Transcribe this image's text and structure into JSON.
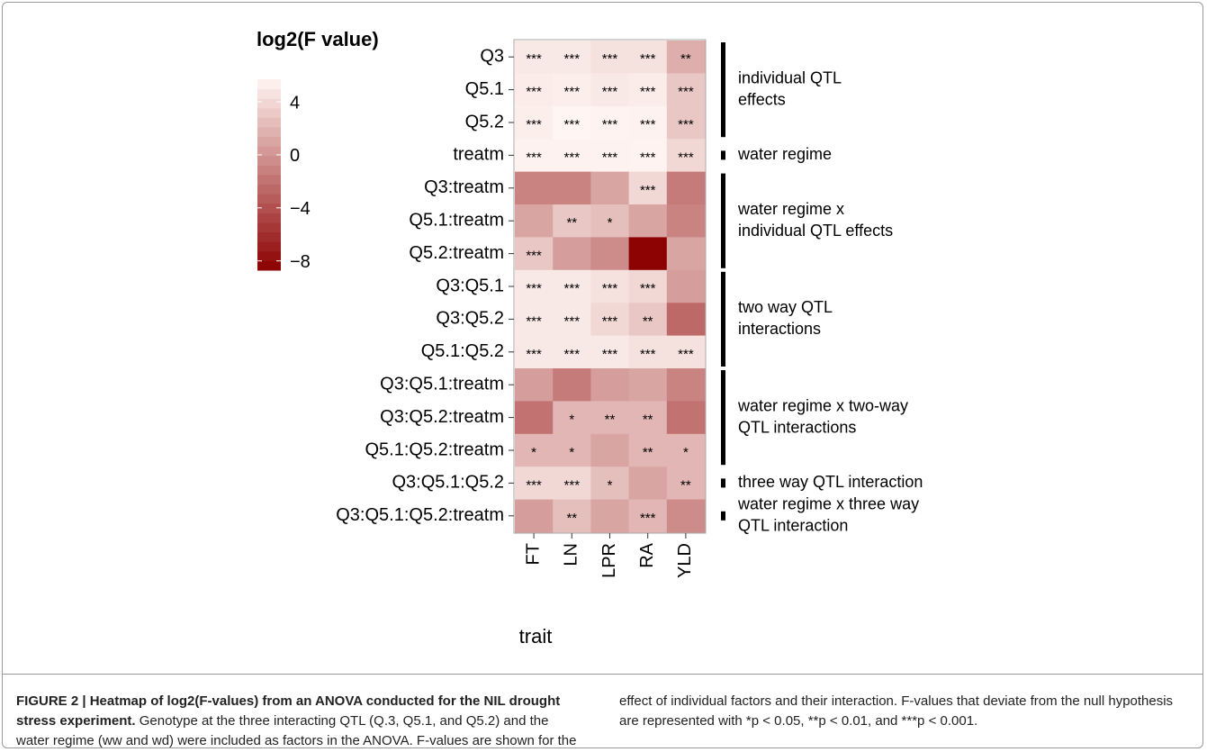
{
  "chart_data": {
    "type": "heatmap",
    "legend_title": "log2(F value)",
    "x_label": "trait",
    "columns": [
      "FT",
      "LN",
      "LPR",
      "RA",
      "YLD"
    ],
    "rows": [
      "Q3",
      "Q5.1",
      "Q5.2",
      "treatm",
      "Q3:treatm",
      "Q5.1:treatm",
      "Q5.2:treatm",
      "Q3:Q5.1",
      "Q3:Q5.2",
      "Q5.1:Q5.2",
      "Q3:Q5.1:treatm",
      "Q3:Q5.2:treatm",
      "Q5.1:Q5.2:treatm",
      "Q3:Q5.1:Q5.2",
      "Q3:Q5.1:Q5.2:treatm"
    ],
    "values": [
      [
        5,
        5,
        4.5,
        4.5,
        1.5
      ],
      [
        5.2,
        5.3,
        5,
        5.2,
        3
      ],
      [
        5.3,
        5.7,
        5.6,
        5.5,
        3
      ],
      [
        5.5,
        5.5,
        5.5,
        5.6,
        4
      ],
      [
        -1,
        -1,
        1,
        4,
        -1.5
      ],
      [
        1,
        3,
        2.5,
        1,
        -1
      ],
      [
        3,
        0.5,
        -0.5,
        -8.5,
        1
      ],
      [
        5,
        5,
        4.5,
        4,
        0.5
      ],
      [
        5,
        5,
        4,
        3,
        -2.5
      ],
      [
        5,
        5,
        5,
        4.5,
        4.5
      ],
      [
        0.5,
        -1.5,
        0.5,
        1,
        -1
      ],
      [
        -2,
        2,
        2,
        2,
        -2
      ],
      [
        2,
        2,
        1,
        2,
        2
      ],
      [
        4,
        4,
        2.5,
        1,
        2
      ],
      [
        0.5,
        2.5,
        1,
        2,
        -0.5
      ]
    ],
    "labels": [
      [
        "***",
        "***",
        "***",
        "***",
        "**"
      ],
      [
        "***",
        "***",
        "***",
        "***",
        "***"
      ],
      [
        "***",
        "***",
        "***",
        "***",
        "***"
      ],
      [
        "***",
        "***",
        "***",
        "***",
        "***"
      ],
      [
        null,
        null,
        null,
        "***",
        null
      ],
      [
        null,
        "**",
        "*",
        null,
        null
      ],
      [
        "***",
        null,
        null,
        null,
        null
      ],
      [
        "***",
        "***",
        "***",
        "***",
        null
      ],
      [
        "***",
        "***",
        "***",
        "**",
        null
      ],
      [
        "***",
        "***",
        "***",
        "***",
        "***"
      ],
      [
        null,
        null,
        null,
        null,
        null
      ],
      [
        null,
        "*",
        "**",
        "**",
        null
      ],
      [
        "*",
        "*",
        null,
        "**",
        "*"
      ],
      [
        "***",
        "***",
        "*",
        null,
        "**"
      ],
      [
        null,
        "**",
        null,
        "***",
        null
      ]
    ],
    "colorscale": {
      "low": "#8b0000",
      "high": "#fff5f2"
    },
    "clim": [
      -8.7,
      5.7
    ],
    "cticks": [
      4,
      0,
      {
        "value": -4,
        "label": "−4"
      },
      {
        "value": -8,
        "label": "−8"
      }
    ],
    "groups": [
      {
        "rows": [
          0,
          2
        ],
        "lines": [
          "individual QTL",
          "effects"
        ]
      },
      {
        "rows": [
          3,
          3
        ],
        "lines": [
          "water regime"
        ]
      },
      {
        "rows": [
          4,
          6
        ],
        "lines": [
          "water regime x",
          "individual QTL effects"
        ]
      },
      {
        "rows": [
          7,
          9
        ],
        "lines": [
          "two way QTL",
          "interactions"
        ]
      },
      {
        "rows": [
          10,
          12
        ],
        "lines": [
          "water regime x two-way",
          "QTL interactions"
        ]
      },
      {
        "rows": [
          13,
          13
        ],
        "lines": [
          "three way QTL interaction"
        ]
      },
      {
        "rows": [
          14,
          14
        ],
        "lines": [
          "water regime x three way",
          "QTL interaction"
        ]
      }
    ]
  },
  "caption": {
    "bold": "FIGURE 2 | Heatmap of log2(F-values) from an ANOVA conducted for the NIL drought stress experiment.",
    "text": "Genotype at the three interacting QTL (Q.3, Q5.1, and Q5.2) and the water regime (ww and wd) were included as factors in the ANOVA. F-values are shown for the effect of individual factors and their interaction. F-values that deviate from the null hypothesis are represented with *p < 0.05, **p < 0.01, and ***p < 0.001."
  }
}
